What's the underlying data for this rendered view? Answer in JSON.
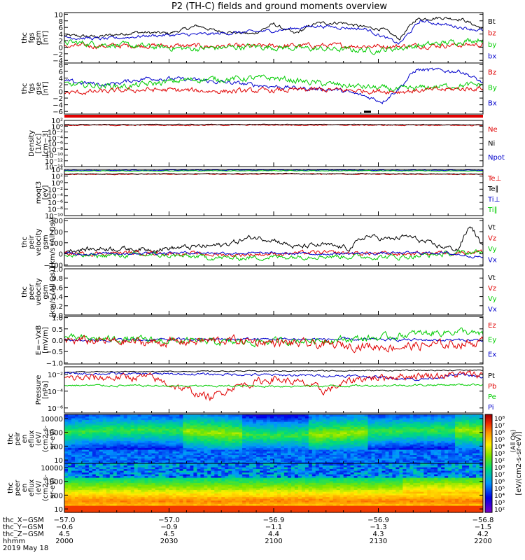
{
  "title": "P2 (TH-C) fields and ground moments overview",
  "colors": {
    "black": "#000000",
    "red": "#e00000",
    "green": "#00cc00",
    "blue": "#0000cc"
  },
  "chart_data": [
    {
      "type": "line",
      "ylabel_lines": [
        "thc",
        "fgs",
        "gsm",
        "[nT]"
      ],
      "yticks": [
        "10",
        "8",
        "6",
        "4",
        "2",
        "0",
        "−2",
        "−4"
      ],
      "ylim": [
        -4.8,
        10.5
      ],
      "legend": [
        "Bt",
        "bz",
        "by",
        "bx"
      ],
      "legend_colors": [
        "black",
        "red",
        "green",
        "blue"
      ],
      "series": [
        {
          "color": "black",
          "ctrl": [
            [
              0,
              3.5
            ],
            [
              0.08,
              3.2
            ],
            [
              0.17,
              4.5
            ],
            [
              0.25,
              4.2
            ],
            [
              0.32,
              6.5
            ],
            [
              0.36,
              5.0
            ],
            [
              0.45,
              4.0
            ],
            [
              0.5,
              7.0
            ],
            [
              0.55,
              4.0
            ],
            [
              0.6,
              7.2
            ],
            [
              0.66,
              7.5
            ],
            [
              0.72,
              6.0
            ],
            [
              0.76,
              5.5
            ],
            [
              0.8,
              2.5
            ],
            [
              0.84,
              8.5
            ],
            [
              0.9,
              9.0
            ],
            [
              0.95,
              8.5
            ],
            [
              1,
              5.5
            ]
          ],
          "noise": 0.4
        },
        {
          "color": "red",
          "ctrl": [
            [
              0,
              0.3
            ],
            [
              0.2,
              0.5
            ],
            [
              0.4,
              0.2
            ],
            [
              0.6,
              0.5
            ],
            [
              0.8,
              0.3
            ],
            [
              1,
              0.8
            ]
          ],
          "noise": 0.6
        },
        {
          "color": "green",
          "ctrl": [
            [
              0,
              1.5
            ],
            [
              0.15,
              0.5
            ],
            [
              0.3,
              -0.5
            ],
            [
              0.45,
              0.2
            ],
            [
              0.6,
              -0.5
            ],
            [
              0.75,
              -1.0
            ],
            [
              0.85,
              0.5
            ],
            [
              1,
              2.5
            ]
          ],
          "noise": 0.7
        },
        {
          "color": "blue",
          "ctrl": [
            [
              0,
              3.0
            ],
            [
              0.1,
              2.5
            ],
            [
              0.2,
              3.5
            ],
            [
              0.35,
              4.0
            ],
            [
              0.5,
              5.0
            ],
            [
              0.6,
              6.5
            ],
            [
              0.72,
              5.5
            ],
            [
              0.8,
              1.0
            ],
            [
              0.85,
              8.0
            ],
            [
              1,
              5.0
            ]
          ],
          "noise": 0.4
        }
      ]
    },
    {
      "type": "line",
      "ylabel_lines": [
        "thc",
        "fgs",
        "gse",
        "[nT]"
      ],
      "yticks": [
        "8",
        "6",
        "4",
        "2",
        "0",
        "−2",
        "−4",
        "−6"
      ],
      "ylim": [
        -6.8,
        8.5
      ],
      "legend": [
        "Bz",
        "By",
        "Bx"
      ],
      "legend_colors": [
        "red",
        "green",
        "blue"
      ],
      "series": [
        {
          "color": "blue",
          "ctrl": [
            [
              0,
              3.0
            ],
            [
              0.1,
              2.0
            ],
            [
              0.2,
              4.0
            ],
            [
              0.3,
              3.5
            ],
            [
              0.45,
              2.0
            ],
            [
              0.55,
              1.0
            ],
            [
              0.65,
              0.5
            ],
            [
              0.72,
              -1.5
            ],
            [
              0.76,
              -3.0
            ],
            [
              0.8,
              1.0
            ],
            [
              0.84,
              6.5
            ],
            [
              0.95,
              6.0
            ],
            [
              1,
              2.5
            ]
          ],
          "noise": 0.5
        },
        {
          "color": "green",
          "ctrl": [
            [
              0,
              2.0
            ],
            [
              0.15,
              1.5
            ],
            [
              0.3,
              3.5
            ],
            [
              0.5,
              4.0
            ],
            [
              0.6,
              2.5
            ],
            [
              0.7,
              1.5
            ],
            [
              0.8,
              0.5
            ],
            [
              0.9,
              1.5
            ],
            [
              1,
              2.0
            ]
          ],
          "noise": 0.7
        },
        {
          "color": "red",
          "ctrl": [
            [
              0,
              -0.5
            ],
            [
              0.2,
              0.5
            ],
            [
              0.4,
              0.0
            ],
            [
              0.6,
              0.5
            ],
            [
              0.8,
              0.0
            ],
            [
              1,
              1.0
            ]
          ],
          "noise": 0.6
        }
      ]
    },
    {
      "type": "line",
      "ylabel_lines": [
        "Density",
        "[1/cc]",
        "[cm−3]"
      ],
      "yticks": [
        "10²",
        "10⁰",
        "10⁻²",
        "10⁻⁴",
        "10⁻⁶",
        "10⁻⁸",
        "10⁻¹⁰",
        "10⁻¹²",
        "10⁻¹⁴"
      ],
      "ylim": [
        -14,
        2
      ],
      "log_exponents": true,
      "legend": [
        "Ne",
        "Ni",
        "Npot"
      ],
      "legend_colors": [
        "red",
        "black",
        "blue"
      ],
      "series": [
        {
          "color": "red",
          "ctrl": [
            [
              0,
              0.3
            ],
            [
              0.5,
              0.4
            ],
            [
              1,
              0.3
            ]
          ],
          "noise": 0.15
        },
        {
          "color": "black",
          "ctrl": [
            [
              0,
              0.5
            ],
            [
              0.5,
              0.6
            ],
            [
              1,
              0.5
            ]
          ],
          "noise": 0.1
        }
      ]
    },
    {
      "type": "line",
      "ylabel_lines": [
        "moqt3",
        "[eV]"
      ],
      "yticks": [
        "10⁴",
        "10²",
        "10⁰",
        "10⁻²",
        "10⁻⁴",
        "10⁻⁶",
        "10⁻⁸",
        "10⁻¹⁰"
      ],
      "ylim": [
        -10,
        4
      ],
      "log_exponents": true,
      "legend": [
        "Te⊥",
        "Te∥",
        "Ti⊥",
        "Ti∥"
      ],
      "legend_colors": [
        "red",
        "black",
        "blue",
        "green"
      ],
      "series": [
        {
          "color": "blue",
          "ctrl": [
            [
              0,
              3.7
            ],
            [
              0.5,
              3.8
            ],
            [
              1,
              3.7
            ]
          ],
          "noise": 0.08
        },
        {
          "color": "green",
          "ctrl": [
            [
              0,
              3.5
            ],
            [
              0.5,
              3.6
            ],
            [
              1,
              3.5
            ]
          ],
          "noise": 0.08
        },
        {
          "color": "red",
          "ctrl": [
            [
              0,
              2.5
            ],
            [
              0.5,
              2.6
            ],
            [
              1,
              2.5
            ]
          ],
          "noise": 0.1
        },
        {
          "color": "black",
          "ctrl": [
            [
              0,
              2.6
            ],
            [
              0.5,
              2.7
            ],
            [
              1,
              2.6
            ]
          ],
          "noise": 0.1
        }
      ]
    },
    {
      "type": "line",
      "ylabel_lines": [
        "thc",
        "peir",
        "velocity",
        "gsm",
        "[km/s (All Qs)]"
      ],
      "yticks": [
        "300",
        "200",
        "100",
        "0",
        "−100"
      ],
      "ylim": [
        -110,
        320
      ],
      "legend": [
        "Vt",
        "Vz",
        "Vy",
        "Vx"
      ],
      "legend_colors": [
        "black",
        "red",
        "green",
        "blue"
      ],
      "series": [
        {
          "color": "black",
          "ctrl": [
            [
              0,
              30
            ],
            [
              0.1,
              50
            ],
            [
              0.2,
              40
            ],
            [
              0.3,
              60
            ],
            [
              0.38,
              80
            ],
            [
              0.45,
              150
            ],
            [
              0.5,
              130
            ],
            [
              0.55,
              60
            ],
            [
              0.62,
              80
            ],
            [
              0.68,
              50
            ],
            [
              0.72,
              160
            ],
            [
              0.78,
              130
            ],
            [
              0.82,
              160
            ],
            [
              0.88,
              80
            ],
            [
              0.94,
              40
            ],
            [
              0.97,
              260
            ],
            [
              1,
              60
            ]
          ],
          "noise": 18
        },
        {
          "color": "red",
          "ctrl": [
            [
              0,
              0
            ],
            [
              0.2,
              10
            ],
            [
              0.4,
              -10
            ],
            [
              0.6,
              10
            ],
            [
              0.8,
              0
            ],
            [
              1,
              20
            ]
          ],
          "noise": 15
        },
        {
          "color": "green",
          "ctrl": [
            [
              0,
              -20
            ],
            [
              0.2,
              -10
            ],
            [
              0.4,
              -40
            ],
            [
              0.6,
              -20
            ],
            [
              0.8,
              -30
            ],
            [
              1,
              20
            ]
          ],
          "noise": 18
        },
        {
          "color": "blue",
          "ctrl": [
            [
              0,
              0
            ],
            [
              0.3,
              10
            ],
            [
              0.6,
              0
            ],
            [
              0.9,
              10
            ],
            [
              1,
              -30
            ]
          ],
          "noise": 10
        }
      ]
    },
    {
      "type": "line",
      "ylabel_lines": [
        "thc",
        "peer",
        "velocity",
        "gsm",
        "[km/s (All Qs)]"
      ],
      "yticks": [
        "1.0",
        "0.8",
        "0.6",
        "0.4",
        "0.2",
        "0.0"
      ],
      "ylim": [
        0,
        1.0
      ],
      "legend": [
        "Vt",
        "Vz",
        "Vy",
        "Vx"
      ],
      "legend_colors": [
        "black",
        "red",
        "green",
        "blue"
      ],
      "series": []
    },
    {
      "type": "line",
      "ylabel_lines": [
        "E=−VxB",
        "[mV/m]"
      ],
      "yticks": [
        "1.0",
        "0.5",
        "0.0",
        "−0.5",
        "−1.0"
      ],
      "ylim": [
        -1.05,
        1.05
      ],
      "legend": [
        "Ez",
        "Ey",
        "Ex"
      ],
      "legend_colors": [
        "red",
        "green",
        "blue"
      ],
      "series": [
        {
          "color": "blue",
          "ctrl": [
            [
              0,
              0.0
            ],
            [
              0.5,
              0.05
            ],
            [
              1,
              0.0
            ]
          ],
          "noise": 0.05
        },
        {
          "color": "green",
          "ctrl": [
            [
              0,
              0.1
            ],
            [
              0.2,
              0.0
            ],
            [
              0.4,
              -0.1
            ],
            [
              0.6,
              0.0
            ],
            [
              0.75,
              0.1
            ],
            [
              0.85,
              0.3
            ],
            [
              0.95,
              0.4
            ],
            [
              1,
              0.2
            ]
          ],
          "noise": 0.12
        },
        {
          "color": "red",
          "ctrl": [
            [
              0,
              0.0
            ],
            [
              0.2,
              -0.1
            ],
            [
              0.4,
              0.0
            ],
            [
              0.6,
              -0.2
            ],
            [
              0.8,
              -0.3
            ],
            [
              1,
              -0.1
            ]
          ],
          "noise": 0.15
        }
      ]
    },
    {
      "type": "line",
      "ylabel_lines": [
        "Pressure",
        "[nPa]"
      ],
      "yticks": [
        "10⁻²",
        "10⁻⁴",
        "10⁻⁶"
      ],
      "ytick_values": [
        -2,
        -4,
        -6
      ],
      "ylim": [
        -6.6,
        -1.1
      ],
      "log_exponents": true,
      "legend": [
        "Pt",
        "Pb",
        "Pe",
        "Pi"
      ],
      "legend_colors": [
        "black",
        "red",
        "green",
        "blue"
      ],
      "series": [
        {
          "color": "black",
          "ctrl": [
            [
              0,
              -1.7
            ],
            [
              0.5,
              -1.6
            ],
            [
              1,
              -1.5
            ]
          ],
          "noise": 0.05
        },
        {
          "color": "blue",
          "ctrl": [
            [
              0,
              -1.9
            ],
            [
              0.4,
              -2.0
            ],
            [
              0.7,
              -2.2
            ],
            [
              0.85,
              -2.6
            ],
            [
              0.95,
              -2.0
            ],
            [
              1,
              -2.4
            ]
          ],
          "noise": 0.12
        },
        {
          "color": "red",
          "ctrl": [
            [
              0,
              -2.5
            ],
            [
              0.2,
              -2.3
            ],
            [
              0.3,
              -4.0
            ],
            [
              0.35,
              -4.8
            ],
            [
              0.4,
              -3.5
            ],
            [
              0.5,
              -2.5
            ],
            [
              0.58,
              -3.2
            ],
            [
              0.62,
              -4.0
            ],
            [
              0.7,
              -2.5
            ],
            [
              0.8,
              -2.2
            ],
            [
              1,
              -2.0
            ]
          ],
          "noise": 0.35
        },
        {
          "color": "green",
          "ctrl": [
            [
              0,
              -3.3
            ],
            [
              0.3,
              -3.4
            ],
            [
              0.6,
              -3.4
            ],
            [
              1,
              -3.2
            ]
          ],
          "noise": 0.1
        }
      ]
    },
    {
      "type": "heatmap",
      "ylabel_lines": [
        "thc",
        "peir",
        "en",
        "eflux",
        "(eV/",
        "(cm2-s-",
        "sr-eV)"
      ],
      "yticks": [
        "10000",
        "1000",
        "100",
        "10"
      ],
      "ytick_values": [
        4,
        3,
        2,
        1
      ],
      "ylim": [
        0.75,
        4.3
      ],
      "profile": "ion"
    },
    {
      "type": "heatmap",
      "ylabel_lines": [
        "thc",
        "peer",
        "en",
        "eflux",
        "(eV/",
        "(cm2-s-",
        "sr-eV)"
      ],
      "yticks": [
        "10000",
        "1000",
        "100",
        "10"
      ],
      "ytick_values": [
        4,
        3,
        2,
        1
      ],
      "ylim": [
        0.75,
        4.3
      ],
      "profile": "electron"
    }
  ],
  "colorbar": {
    "ticks": [
      "10⁸",
      "10⁷",
      "10⁶",
      "10⁵",
      "10⁴",
      "10³",
      "10²"
    ],
    "label": "[eV/(cm2-s-sr-eV)]",
    "label_ions": "(All Qs)"
  },
  "x_axis": {
    "rows": [
      {
        "name": "thc_X−GSM",
        "values": [
          "−57.0",
          "−57.0",
          "−56.9",
          "−56.9",
          "−56.8"
        ]
      },
      {
        "name": "thc_Y−GSM",
        "values": [
          "−0.6",
          "−0.9",
          "−1.1",
          "−1.3",
          "−1.5"
        ]
      },
      {
        "name": "thc_Z−GSM",
        "values": [
          "4.5",
          "4.5",
          "4.4",
          "4.3",
          "4.2"
        ]
      },
      {
        "name": "hhmm",
        "values": [
          "2000",
          "2030",
          "2100",
          "2130",
          "2200"
        ]
      }
    ],
    "date": "2019 May 18"
  }
}
